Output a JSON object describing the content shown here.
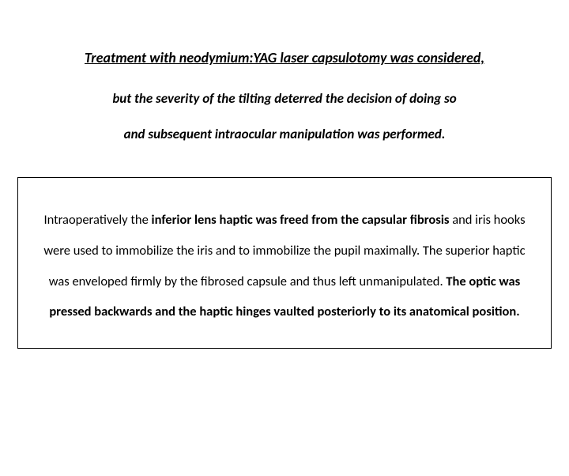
{
  "heading": "Treatment with neodymium:YAG laser capsulotomy was considered,",
  "sub1": "but the severity of the tilting deterred the decision of doing so",
  "sub2": "and subsequent intraocular manipulation was performed.",
  "box": {
    "t1": "Intraoperatively the ",
    "b1": "inferior lens haptic was freed from the capsular fibrosis",
    "t2": " and iris hooks were used to immobilize the iris and to immobilize the pupil maximally. The superior haptic was enveloped firmly by the fibrosed capsule and thus left unmanipulated. ",
    "b2": "The optic was pressed backwards and the haptic hinges vaulted posteriorly to its anatomical position."
  },
  "colors": {
    "text": "#000000",
    "background": "#ffffff",
    "border": "#000000"
  },
  "typography": {
    "heading_fontsize": 18,
    "sub_fontsize": 17,
    "box_fontsize": 16.5,
    "font_family": "Calibri"
  }
}
